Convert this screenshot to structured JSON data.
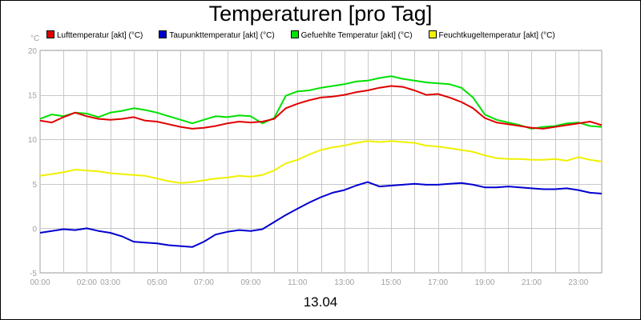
{
  "chart_data": {
    "type": "line",
    "title": "Temperaturen [pro Tag]",
    "ylabel": "°C",
    "xlabel": "13.04",
    "ylim": [
      -5,
      20
    ],
    "yticks": [
      -5,
      0,
      5,
      10,
      15,
      20
    ],
    "xlim": [
      0,
      24
    ],
    "xtick_labels": [
      "00:00",
      "02:00",
      "03:00",
      "05:00",
      "07:00",
      "09:00",
      "11:00",
      "13:00",
      "15:00",
      "17:00",
      "19:00",
      "21:00",
      "23:00"
    ],
    "xtick_hours": [
      0,
      2,
      3,
      5,
      7,
      9,
      11,
      13,
      15,
      17,
      19,
      21,
      23
    ],
    "grid": true,
    "legend_position": "top",
    "x": [
      0,
      0.5,
      1,
      1.5,
      2,
      2.5,
      3,
      3.5,
      4,
      4.5,
      5,
      5.5,
      6,
      6.5,
      7,
      7.5,
      8,
      8.5,
      9,
      9.5,
      10,
      10.5,
      11,
      11.5,
      12,
      12.5,
      13,
      13.5,
      14,
      14.5,
      15,
      15.5,
      16,
      16.5,
      17,
      17.5,
      18,
      18.5,
      19,
      19.5,
      20,
      20.5,
      21,
      21.5,
      22,
      22.5,
      23,
      23.5,
      24
    ],
    "series": [
      {
        "name": "Lufttemperatur [akt] (°C)",
        "color": "#e00000",
        "values": [
          12.1,
          11.9,
          12.5,
          13.0,
          12.6,
          12.3,
          12.2,
          12.3,
          12.5,
          12.1,
          12.0,
          11.7,
          11.4,
          11.2,
          11.3,
          11.5,
          11.8,
          12.0,
          11.9,
          12.0,
          12.3,
          13.5,
          14.0,
          14.4,
          14.7,
          14.8,
          15.0,
          15.3,
          15.5,
          15.8,
          16.0,
          15.9,
          15.5,
          15.0,
          15.1,
          14.7,
          14.2,
          13.5,
          12.4,
          11.9,
          11.7,
          11.5,
          11.3,
          11.2,
          11.4,
          11.6,
          11.8,
          12.0,
          11.6
        ]
      },
      {
        "name": "Taupunkttemperatur [akt] (°C)",
        "color": "#0000d0",
        "values": [
          -0.5,
          -0.3,
          -0.1,
          -0.2,
          0.0,
          -0.3,
          -0.5,
          -0.9,
          -1.5,
          -1.6,
          -1.7,
          -1.9,
          -2.0,
          -2.1,
          -1.5,
          -0.7,
          -0.4,
          -0.2,
          -0.3,
          -0.1,
          0.7,
          1.5,
          2.2,
          2.9,
          3.5,
          4.0,
          4.3,
          4.8,
          5.2,
          4.7,
          4.8,
          4.9,
          5.0,
          4.9,
          4.9,
          5.0,
          5.1,
          4.9,
          4.6,
          4.6,
          4.7,
          4.6,
          4.5,
          4.4,
          4.4,
          4.5,
          4.3,
          4.0,
          3.9
        ]
      },
      {
        "name": "Gefuehlte Temperatur [akt] (°C)",
        "color": "#00e000",
        "values": [
          12.3,
          12.8,
          12.6,
          13.0,
          12.9,
          12.5,
          13.0,
          13.2,
          13.5,
          13.3,
          13.0,
          12.6,
          12.2,
          11.8,
          12.2,
          12.6,
          12.5,
          12.7,
          12.6,
          11.8,
          12.4,
          14.9,
          15.4,
          15.5,
          15.8,
          16.0,
          16.2,
          16.5,
          16.6,
          16.9,
          17.1,
          16.8,
          16.6,
          16.4,
          16.3,
          16.2,
          15.8,
          14.7,
          12.8,
          12.2,
          11.9,
          11.6,
          11.2,
          11.4,
          11.5,
          11.8,
          11.9,
          11.5,
          11.4
        ]
      },
      {
        "name": "Feuchtkugeltemperatur [akt] (°C)",
        "color": "#f0f000",
        "values": [
          5.9,
          6.1,
          6.3,
          6.6,
          6.5,
          6.4,
          6.2,
          6.1,
          6.0,
          5.9,
          5.6,
          5.3,
          5.1,
          5.2,
          5.4,
          5.6,
          5.7,
          5.9,
          5.8,
          6.0,
          6.5,
          7.3,
          7.7,
          8.3,
          8.8,
          9.1,
          9.3,
          9.6,
          9.8,
          9.7,
          9.8,
          9.7,
          9.6,
          9.3,
          9.2,
          9.0,
          8.8,
          8.6,
          8.2,
          7.9,
          7.8,
          7.8,
          7.7,
          7.7,
          7.8,
          7.6,
          8.0,
          7.7,
          7.5
        ]
      }
    ]
  }
}
